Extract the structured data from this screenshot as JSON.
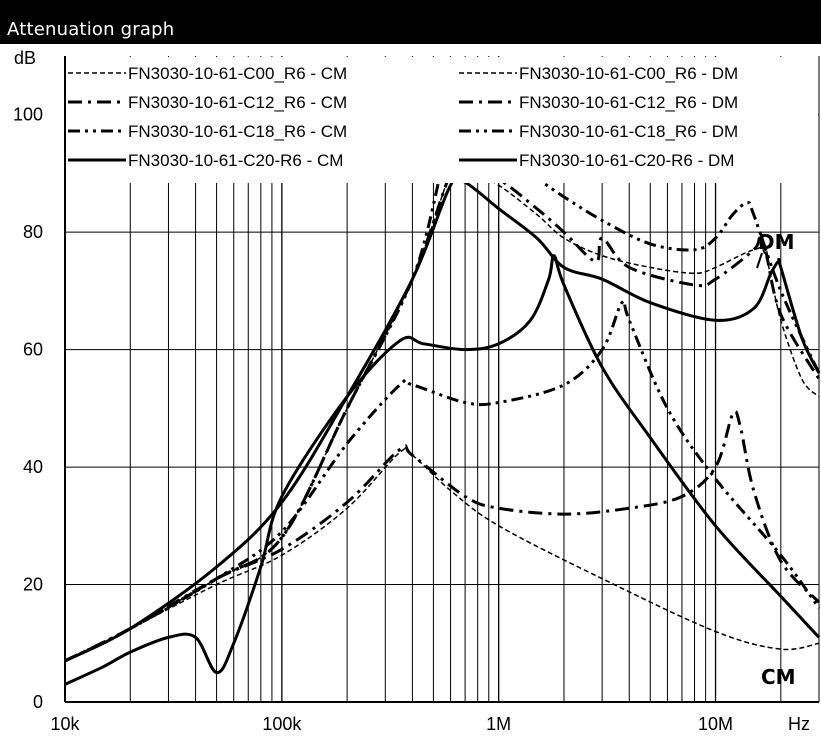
{
  "header": {
    "title": "Attenuation graph"
  },
  "chart_data": {
    "type": "line",
    "title": "Attenuation graph",
    "ylabel": "dB",
    "xlabel": "Hz",
    "xscale": "log",
    "xlim": [
      10000,
      30000000
    ],
    "ylim": [
      0,
      110
    ],
    "x_ticks": [
      {
        "value": 10000,
        "label": "10k"
      },
      {
        "value": 100000,
        "label": "100k"
      },
      {
        "value": 1000000,
        "label": "1M"
      },
      {
        "value": 10000000,
        "label": "10M"
      }
    ],
    "y_ticks": [
      0,
      20,
      40,
      60,
      80,
      100
    ],
    "grid": true,
    "legend_placement": "top",
    "annotations": [
      "DM",
      "CM"
    ],
    "series": [
      {
        "name": "FN3030-10-61-C00_R6 - CM",
        "style": "dashed-fine",
        "width": 1.5,
        "points": [
          [
            10000,
            7
          ],
          [
            20000,
            12.5
          ],
          [
            50000,
            20
          ],
          [
            100000,
            25
          ],
          [
            200000,
            33
          ],
          [
            350000,
            42.5
          ],
          [
            400000,
            42
          ],
          [
            600000,
            36
          ],
          [
            1000000,
            30
          ],
          [
            3000000,
            21
          ],
          [
            10000000,
            12
          ],
          [
            20000000,
            9
          ],
          [
            30000000,
            10
          ]
        ]
      },
      {
        "name": "FN3030-10-61-C00_R6 - DM",
        "style": "dashed-fine",
        "width": 1.5,
        "points": [
          [
            10000,
            7
          ],
          [
            20000,
            12.5
          ],
          [
            50000,
            21
          ],
          [
            100000,
            28
          ],
          [
            200000,
            50
          ],
          [
            400000,
            72
          ],
          [
            600000,
            90
          ],
          [
            700000,
            91
          ],
          [
            1000000,
            88
          ],
          [
            1500000,
            83
          ],
          [
            2000000,
            79
          ],
          [
            3000000,
            76
          ],
          [
            5000000,
            74
          ],
          [
            8000000,
            73
          ],
          [
            10000000,
            74
          ],
          [
            15000000,
            77
          ],
          [
            17000000,
            76
          ],
          [
            20000000,
            65
          ],
          [
            25000000,
            55
          ],
          [
            30000000,
            52
          ]
        ]
      },
      {
        "name": "FN3030-10-61-C12_R6 - CM",
        "style": "dash-dot",
        "width": 3,
        "points": [
          [
            10000,
            7
          ],
          [
            20000,
            12.5
          ],
          [
            50000,
            21
          ],
          [
            100000,
            26
          ],
          [
            200000,
            34
          ],
          [
            350000,
            43
          ],
          [
            400000,
            42
          ],
          [
            700000,
            35
          ],
          [
            1000000,
            33
          ],
          [
            2000000,
            32
          ],
          [
            4000000,
            33
          ],
          [
            7000000,
            35
          ],
          [
            10000000,
            40
          ],
          [
            12000000,
            49
          ],
          [
            13000000,
            47
          ],
          [
            15000000,
            36
          ],
          [
            20000000,
            24
          ],
          [
            30000000,
            17
          ]
        ]
      },
      {
        "name": "FN3030-10-61-C12_R6 - DM",
        "style": "dash-dot",
        "width": 3,
        "points": [
          [
            10000,
            7
          ],
          [
            20000,
            12.5
          ],
          [
            50000,
            21
          ],
          [
            100000,
            28
          ],
          [
            200000,
            50
          ],
          [
            400000,
            72
          ],
          [
            600000,
            90
          ],
          [
            700000,
            91
          ],
          [
            1000000,
            89
          ],
          [
            1500000,
            84
          ],
          [
            2000000,
            80
          ],
          [
            2800000,
            75
          ],
          [
            3000000,
            79
          ],
          [
            4000000,
            74
          ],
          [
            8000000,
            71
          ],
          [
            10000000,
            72
          ],
          [
            15000000,
            77
          ],
          [
            16000000,
            79
          ],
          [
            17000000,
            77
          ],
          [
            20000000,
            66
          ],
          [
            30000000,
            55
          ]
        ]
      },
      {
        "name": "FN3030-10-61-C18_R6 - CM",
        "style": "dash-dot-dot",
        "width": 3,
        "points": [
          [
            10000,
            7
          ],
          [
            20000,
            12.5
          ],
          [
            50000,
            21
          ],
          [
            100000,
            29
          ],
          [
            200000,
            44
          ],
          [
            350000,
            54
          ],
          [
            400000,
            54
          ],
          [
            700000,
            51
          ],
          [
            1000000,
            51
          ],
          [
            2000000,
            54
          ],
          [
            3000000,
            60
          ],
          [
            3700000,
            68
          ],
          [
            4000000,
            65
          ],
          [
            6000000,
            50
          ],
          [
            10000000,
            38
          ],
          [
            20000000,
            25
          ],
          [
            30000000,
            16
          ]
        ]
      },
      {
        "name": "FN3030-10-61-C18_R6 - DM",
        "style": "dash-dot-dot",
        "width": 3,
        "points": [
          [
            10000,
            7
          ],
          [
            20000,
            12.5
          ],
          [
            50000,
            21
          ],
          [
            100000,
            28
          ],
          [
            200000,
            50
          ],
          [
            400000,
            72
          ],
          [
            550000,
            91
          ],
          [
            600000,
            92
          ],
          [
            800000,
            91
          ],
          [
            1000000,
            92
          ],
          [
            1500000,
            89
          ],
          [
            2000000,
            86
          ],
          [
            3000000,
            82
          ],
          [
            5000000,
            78
          ],
          [
            8000000,
            77
          ],
          [
            10000000,
            79
          ],
          [
            12000000,
            83
          ],
          [
            14000000,
            85
          ],
          [
            15000000,
            83
          ],
          [
            20000000,
            70
          ],
          [
            30000000,
            56
          ]
        ]
      },
      {
        "name": "FN3030-10-61-C20-R6 - CM",
        "style": "solid",
        "width": 3,
        "points": [
          [
            10000,
            3
          ],
          [
            15000,
            6
          ],
          [
            20000,
            8.5
          ],
          [
            30000,
            11
          ],
          [
            40000,
            11
          ],
          [
            50000,
            5
          ],
          [
            60000,
            10
          ],
          [
            80000,
            23
          ],
          [
            100000,
            35
          ],
          [
            200000,
            52
          ],
          [
            350000,
            61.5
          ],
          [
            450000,
            61
          ],
          [
            700000,
            60
          ],
          [
            1000000,
            61
          ],
          [
            1400000,
            65
          ],
          [
            1700000,
            72
          ],
          [
            1800000,
            76
          ],
          [
            2000000,
            71
          ],
          [
            3000000,
            57
          ],
          [
            5000000,
            45
          ],
          [
            10000000,
            30
          ],
          [
            20000000,
            18
          ],
          [
            30000000,
            11
          ]
        ]
      },
      {
        "name": "FN3030-10-61-C20-R6 - DM",
        "style": "solid",
        "width": 3,
        "points": [
          [
            10000,
            7
          ],
          [
            20000,
            12.5
          ],
          [
            50000,
            23
          ],
          [
            100000,
            34
          ],
          [
            200000,
            52
          ],
          [
            400000,
            72
          ],
          [
            600000,
            88
          ],
          [
            700000,
            88.5
          ],
          [
            1000000,
            84
          ],
          [
            1500000,
            79
          ],
          [
            2000000,
            74
          ],
          [
            3000000,
            72
          ],
          [
            5000000,
            68
          ],
          [
            10000000,
            65
          ],
          [
            15000000,
            67
          ],
          [
            18000000,
            73
          ],
          [
            19500000,
            75
          ],
          [
            20000000,
            74
          ],
          [
            25000000,
            62
          ],
          [
            30000000,
            56
          ]
        ]
      }
    ]
  }
}
